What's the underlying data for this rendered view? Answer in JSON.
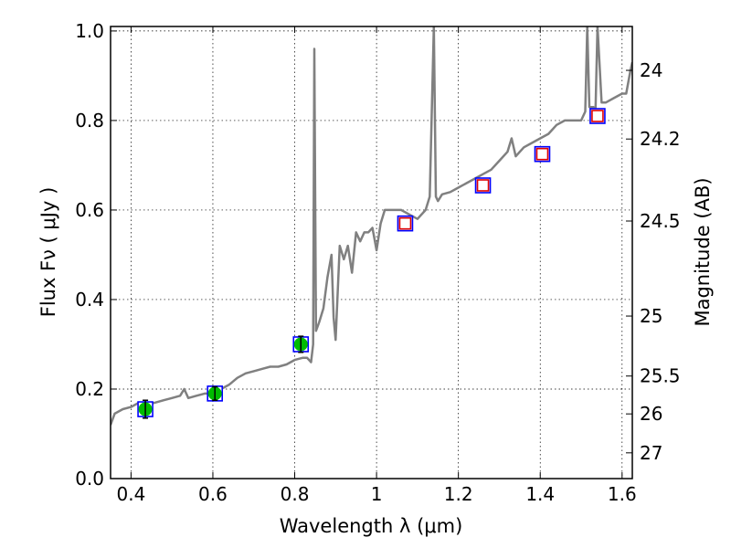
{
  "chart_data": {
    "type": "line",
    "title": "",
    "xlabel": "Wavelength  λ (μm)",
    "ylabel": "Flux  Fν  ( μJy )",
    "y2label": "Magnitude (AB)",
    "xlim": [
      0.35,
      1.625
    ],
    "ylim": [
      0.0,
      1.01
    ],
    "grid": true,
    "xticks": [
      0.4,
      0.6,
      0.8,
      1.0,
      1.2,
      1.4,
      1.6
    ],
    "xtick_labels": [
      "0.4",
      "0.6",
      "0.8",
      "1",
      "1.2",
      "1.4",
      "1.6"
    ],
    "yticks": [
      0.0,
      0.2,
      0.4,
      0.6,
      0.8,
      1.0
    ],
    "ytick_labels": [
      "0.0",
      "0.2",
      "0.4",
      "0.6",
      "0.8",
      "1.0"
    ],
    "y2ticks": [
      {
        "label": "24",
        "flux": 0.912
      },
      {
        "label": "24.2",
        "flux": 0.7586
      },
      {
        "label": "24.5",
        "flux": 0.5754
      },
      {
        "label": "25",
        "flux": 0.3631
      },
      {
        "label": "25.5",
        "flux": 0.2291
      },
      {
        "label": "26",
        "flux": 0.1445
      },
      {
        "label": "27",
        "flux": 0.0575
      }
    ],
    "series": [
      {
        "kind": "line",
        "color": "#808080",
        "x": [
          0.35,
          0.36,
          0.38,
          0.4,
          0.42,
          0.44,
          0.46,
          0.48,
          0.5,
          0.52,
          0.53,
          0.54,
          0.56,
          0.58,
          0.6,
          0.62,
          0.64,
          0.66,
          0.68,
          0.7,
          0.72,
          0.74,
          0.76,
          0.78,
          0.8,
          0.82,
          0.83,
          0.84,
          0.845,
          0.848,
          0.852,
          0.856,
          0.86,
          0.87,
          0.88,
          0.89,
          0.895,
          0.9,
          0.91,
          0.92,
          0.93,
          0.94,
          0.95,
          0.96,
          0.97,
          0.98,
          0.99,
          1.0,
          1.01,
          1.02,
          1.04,
          1.06,
          1.08,
          1.1,
          1.12,
          1.13,
          1.14,
          1.145,
          1.15,
          1.16,
          1.18,
          1.2,
          1.22,
          1.24,
          1.26,
          1.28,
          1.3,
          1.32,
          1.33,
          1.34,
          1.36,
          1.38,
          1.4,
          1.42,
          1.44,
          1.46,
          1.47,
          1.48,
          1.5,
          1.51,
          1.515,
          1.52,
          1.53,
          1.535,
          1.54,
          1.55,
          1.56,
          1.58,
          1.6,
          1.61,
          1.62,
          1.625
        ],
        "y": [
          0.12,
          0.145,
          0.155,
          0.16,
          0.17,
          0.165,
          0.17,
          0.175,
          0.18,
          0.185,
          0.2,
          0.18,
          0.185,
          0.19,
          0.19,
          0.2,
          0.21,
          0.225,
          0.235,
          0.24,
          0.245,
          0.25,
          0.25,
          0.255,
          0.265,
          0.27,
          0.27,
          0.26,
          0.3,
          0.96,
          0.33,
          0.34,
          0.35,
          0.38,
          0.45,
          0.5,
          0.36,
          0.31,
          0.52,
          0.49,
          0.52,
          0.46,
          0.55,
          0.53,
          0.55,
          0.55,
          0.56,
          0.51,
          0.57,
          0.6,
          0.6,
          0.6,
          0.59,
          0.58,
          0.6,
          0.63,
          1.01,
          0.63,
          0.62,
          0.635,
          0.64,
          0.65,
          0.66,
          0.67,
          0.68,
          0.69,
          0.71,
          0.73,
          0.76,
          0.72,
          0.74,
          0.75,
          0.76,
          0.77,
          0.79,
          0.8,
          0.8,
          0.8,
          0.8,
          0.82,
          1.01,
          0.83,
          0.83,
          0.82,
          1.01,
          0.84,
          0.84,
          0.85,
          0.86,
          0.86,
          0.91,
          0.93
        ]
      },
      {
        "kind": "markers",
        "marker": "square",
        "edge_color": "#0000ff",
        "face_color": "#ffffff",
        "x": [
          0.435,
          0.605,
          0.815,
          1.07,
          1.26,
          1.405,
          1.54
        ],
        "y": [
          0.155,
          0.19,
          0.3,
          0.57,
          0.655,
          0.725,
          0.81
        ]
      },
      {
        "kind": "markers",
        "marker": "square",
        "edge_color": "#e00000",
        "face_color": "#ffffff",
        "x": [
          1.07,
          1.26,
          1.405,
          1.54
        ],
        "y": [
          0.57,
          0.655,
          0.725,
          0.81
        ]
      },
      {
        "kind": "errorbar",
        "marker": "circle",
        "color": "#00bb00",
        "x": [
          0.435,
          0.605,
          0.815
        ],
        "y": [
          0.155,
          0.19,
          0.3
        ],
        "err": [
          0.02,
          0.015,
          0.018
        ]
      }
    ]
  }
}
